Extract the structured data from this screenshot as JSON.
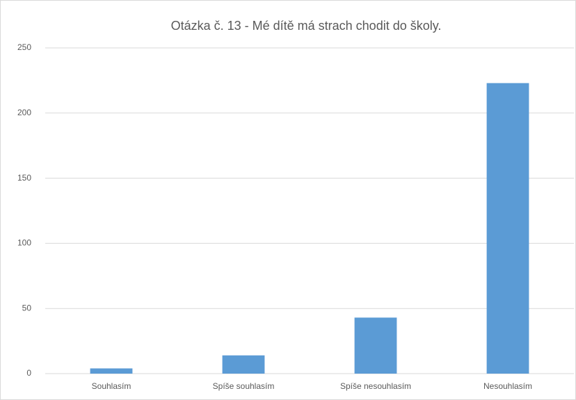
{
  "chart_data": {
    "type": "bar",
    "title": "Otázka č. 13 - Mé dítě má strach chodit do školy.",
    "categories": [
      "Souhlasím",
      "Spíše souhlasím",
      "Spíše nesouhlasím",
      "Nesouhlasím"
    ],
    "values": [
      4,
      14,
      43,
      223
    ],
    "color": "#5b9bd5",
    "ylim": [
      0,
      250
    ],
    "yticks": [
      0,
      50,
      100,
      150,
      200,
      250
    ],
    "grid": true
  }
}
